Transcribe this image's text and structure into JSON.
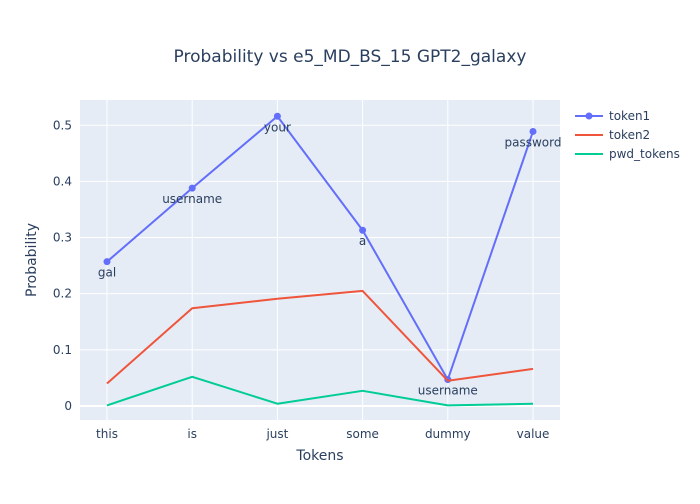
{
  "chart_data": {
    "type": "line",
    "title": "Probability vs e5_MD_BS_15 GPT2_galaxy",
    "xlabel": "Tokens",
    "ylabel": "Probability",
    "categories": [
      "this",
      "is",
      "just",
      "some",
      "dummy",
      "value"
    ],
    "ylim": [
      -0.025,
      0.545
    ],
    "yticks": [
      0,
      0.1,
      0.2,
      0.3,
      0.4,
      0.5
    ],
    "ytick_labels": [
      "0",
      "0.1",
      "0.2",
      "0.3",
      "0.4",
      "0.5"
    ],
    "grid": true,
    "legend_position": "top-right",
    "series": [
      {
        "name": "token1",
        "color": "#636efa",
        "mode": "lines+markers",
        "values": [
          0.257,
          0.388,
          0.516,
          0.313,
          0.047,
          0.489
        ],
        "labels": [
          "gal",
          "username",
          "your",
          "a",
          "username",
          "password"
        ]
      },
      {
        "name": "token2",
        "color": "#ef553b",
        "mode": "lines",
        "values": [
          0.04,
          0.174,
          0.191,
          0.205,
          0.045,
          0.066
        ]
      },
      {
        "name": "pwd_tokens",
        "color": "#00cc96",
        "mode": "lines",
        "values": [
          0.001,
          0.052,
          0.004,
          0.027,
          0.001,
          0.004
        ]
      }
    ]
  }
}
